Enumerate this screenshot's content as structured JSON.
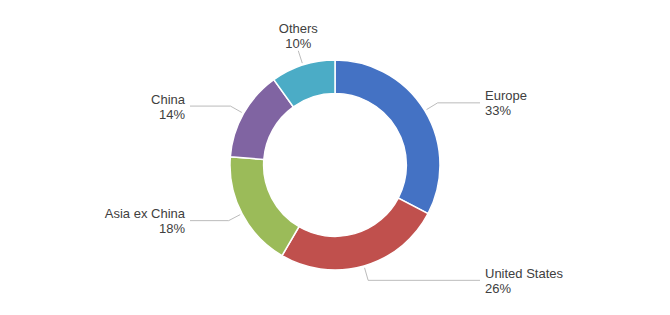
{
  "chart_data": {
    "type": "donut",
    "categories": [
      "Europe",
      "United States",
      "Asia ex China",
      "China",
      "Others"
    ],
    "values": [
      33,
      26,
      18,
      14,
      10
    ],
    "value_labels": [
      "33%",
      "26%",
      "18%",
      "14%",
      "10%"
    ],
    "colors": [
      "#4472C4",
      "#C0504D",
      "#9BBB59",
      "#8064A2",
      "#4BACC6"
    ],
    "data_labels": true
  }
}
